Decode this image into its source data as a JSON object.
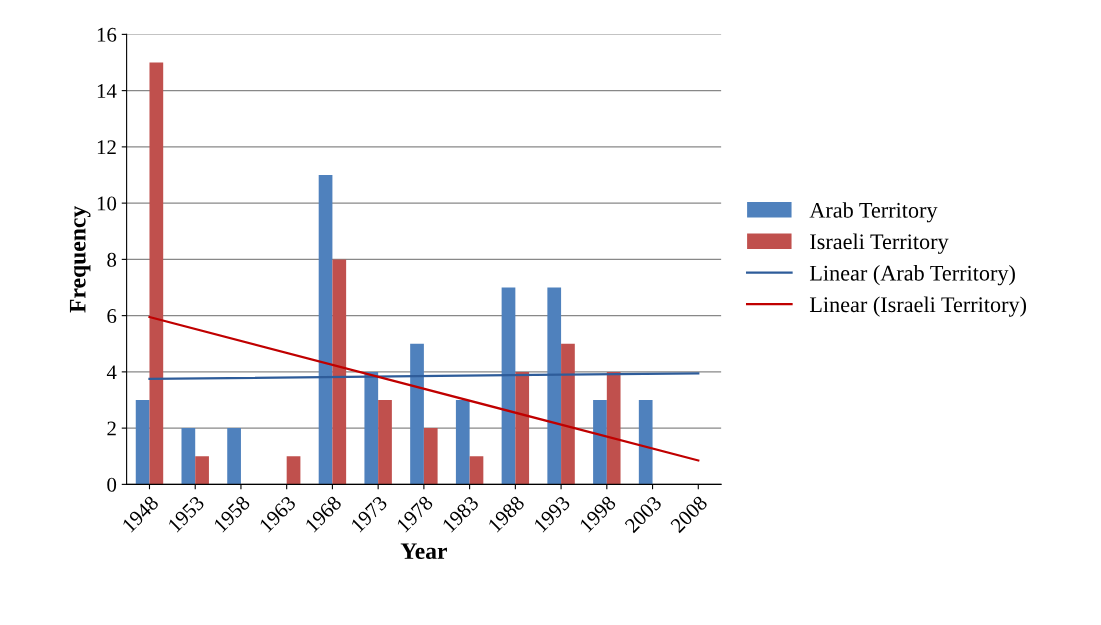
{
  "chart_data": {
    "type": "bar",
    "xlabel": "Year",
    "ylabel": "Frequency",
    "categories": [
      "1948",
      "1953",
      "1958",
      "1963",
      "1968",
      "1973",
      "1978",
      "1983",
      "1988",
      "1993",
      "1998",
      "2003",
      "2008"
    ],
    "series": [
      {
        "name": "Arab Territory",
        "color": "#4f81bd",
        "values": [
          3,
          2,
          2,
          0,
          11,
          4,
          5,
          3,
          7,
          7,
          3,
          3,
          0
        ]
      },
      {
        "name": "Israeli Territory",
        "color": "#c0504d",
        "values": [
          15,
          1,
          0,
          1,
          8,
          3,
          2,
          1,
          4,
          5,
          4,
          0,
          0
        ]
      },
      {
        "name": "Linear (Arab Territory)",
        "type": "line",
        "color": "#2e5c9a",
        "values": [
          3.75,
          null,
          null,
          null,
          null,
          null,
          null,
          null,
          null,
          null,
          null,
          null,
          3.95
        ]
      },
      {
        "name": "Linear (Israeli Territory)",
        "type": "line",
        "color": "#c00000",
        "values": [
          5.95,
          null,
          null,
          null,
          null,
          null,
          null,
          null,
          null,
          null,
          null,
          null,
          0.85
        ]
      }
    ],
    "ylim": [
      0,
      16
    ],
    "yticks": [
      0,
      2,
      4,
      6,
      8,
      10,
      12,
      14,
      16
    ],
    "grid": "y",
    "legend": "right"
  }
}
